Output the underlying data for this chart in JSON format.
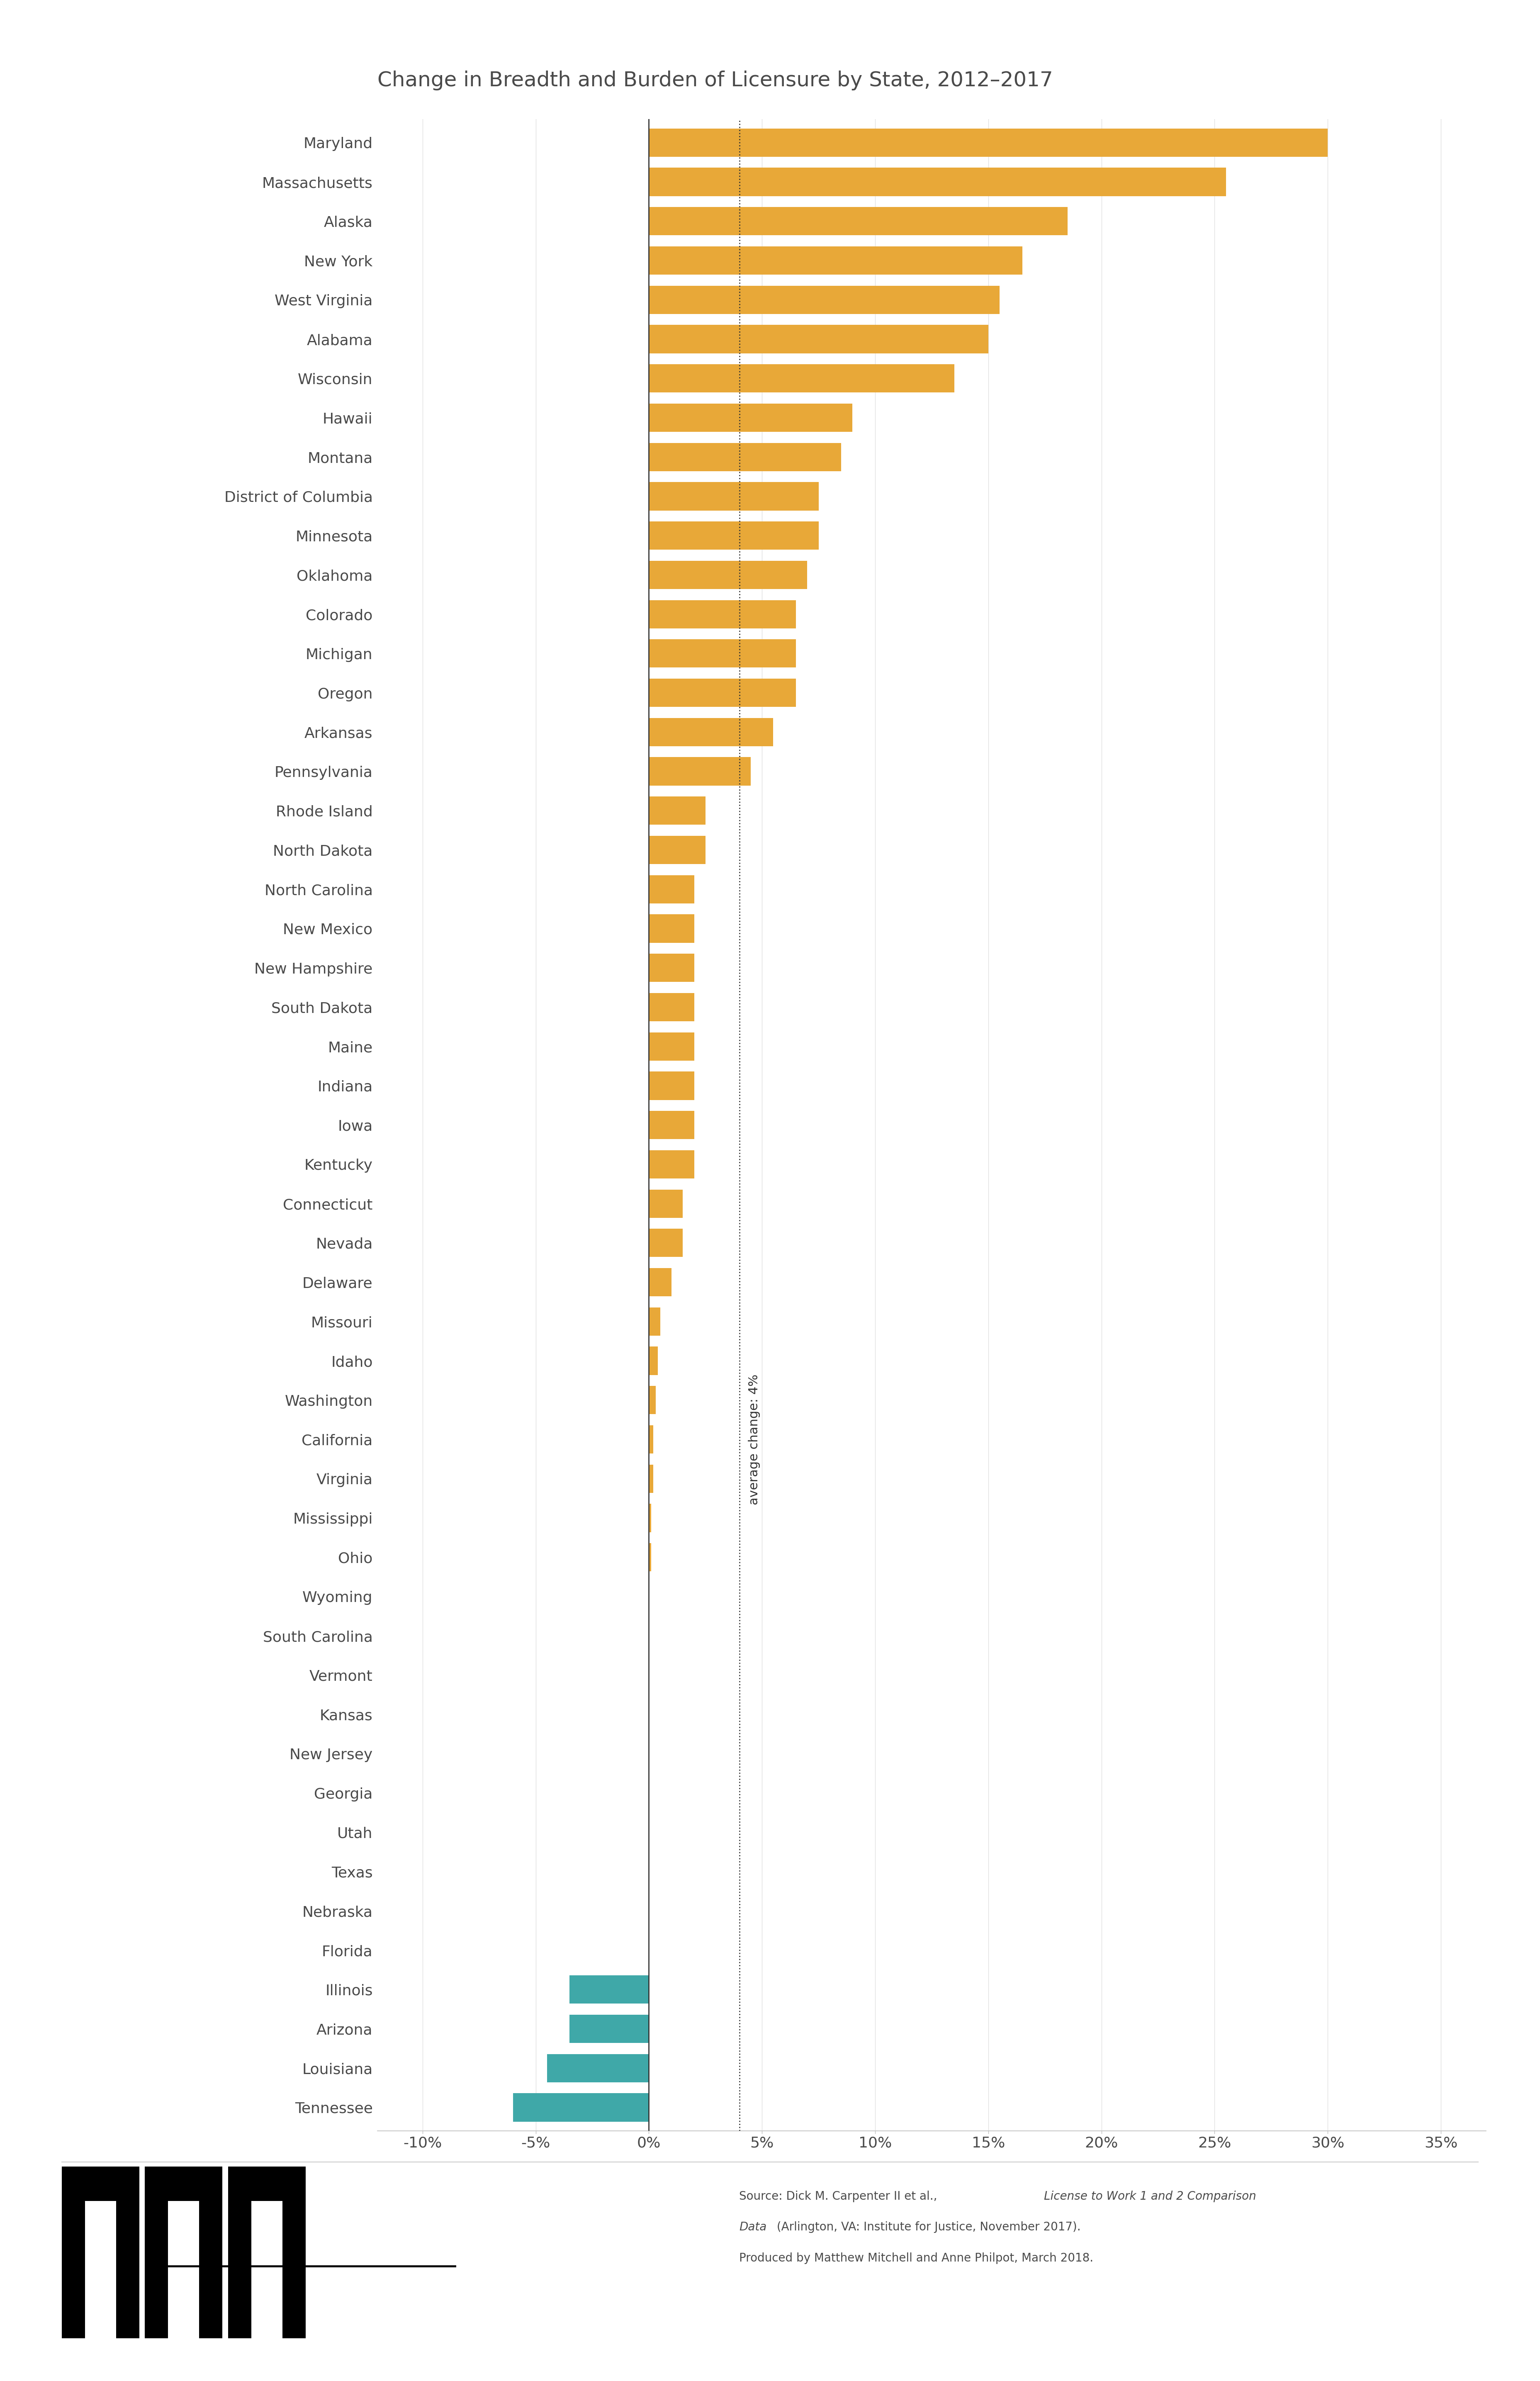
{
  "title": "Change in Breadth and Burden of Licensure by State, 2012–2017",
  "states": [
    "Maryland",
    "Massachusetts",
    "Alaska",
    "New York",
    "West Virginia",
    "Alabama",
    "Wisconsin",
    "Hawaii",
    "Montana",
    "District of Columbia",
    "Minnesota",
    "Oklahoma",
    "Colorado",
    "Michigan",
    "Oregon",
    "Arkansas",
    "Pennsylvania",
    "Rhode Island",
    "North Dakota",
    "North Carolina",
    "New Mexico",
    "New Hampshire",
    "South Dakota",
    "Maine",
    "Indiana",
    "Iowa",
    "Kentucky",
    "Connecticut",
    "Nevada",
    "Delaware",
    "Missouri",
    "Idaho",
    "Washington",
    "California",
    "Virginia",
    "Mississippi",
    "Ohio",
    "Wyoming",
    "South Carolina",
    "Vermont",
    "Kansas",
    "New Jersey",
    "Georgia",
    "Utah",
    "Texas",
    "Nebraska",
    "Florida",
    "Illinois",
    "Arizona",
    "Louisiana",
    "Tennessee"
  ],
  "values": [
    30.0,
    25.5,
    18.5,
    16.5,
    15.5,
    15.0,
    13.5,
    9.0,
    8.5,
    7.5,
    7.5,
    7.0,
    6.5,
    6.5,
    6.5,
    5.5,
    4.5,
    2.5,
    2.5,
    2.0,
    2.0,
    2.0,
    2.0,
    2.0,
    2.0,
    2.0,
    2.0,
    1.5,
    1.5,
    1.0,
    0.5,
    0.4,
    0.3,
    0.2,
    0.2,
    0.1,
    0.1,
    0.0,
    0.0,
    0.0,
    0.0,
    0.0,
    0.0,
    0.0,
    0.0,
    0.0,
    0.0,
    -3.5,
    -3.5,
    -4.5,
    -6.0
  ],
  "positive_color": "#E8A838",
  "negative_color": "#3FA8A8",
  "avg_line_x": 4.0,
  "avg_label": "average change: 4%",
  "xlim": [
    -12,
    37
  ],
  "xticks": [
    -10,
    -5,
    0,
    5,
    10,
    15,
    20,
    25,
    30,
    35
  ],
  "xtick_labels": [
    "-10%",
    "-5%",
    "0%",
    "5%",
    "10%",
    "15%",
    "20%",
    "25%",
    "30%",
    "35%"
  ],
  "background_color": "#FFFFFF",
  "bar_height": 0.72,
  "title_fontsize": 36,
  "label_fontsize": 26,
  "tick_fontsize": 26,
  "avg_label_fontsize": 22,
  "source_line1": "Source: Dick M. Carpenter II et al., ",
  "source_italic": "License to Work 1 and 2 Comparison",
  "source_line2": "Data",
  "source_line2rest": " (Arlington, VA: Institute for Justice, November 2017).",
  "source_line3": "Produced by Matthew Mitchell and Anne Philpot, March 2018."
}
